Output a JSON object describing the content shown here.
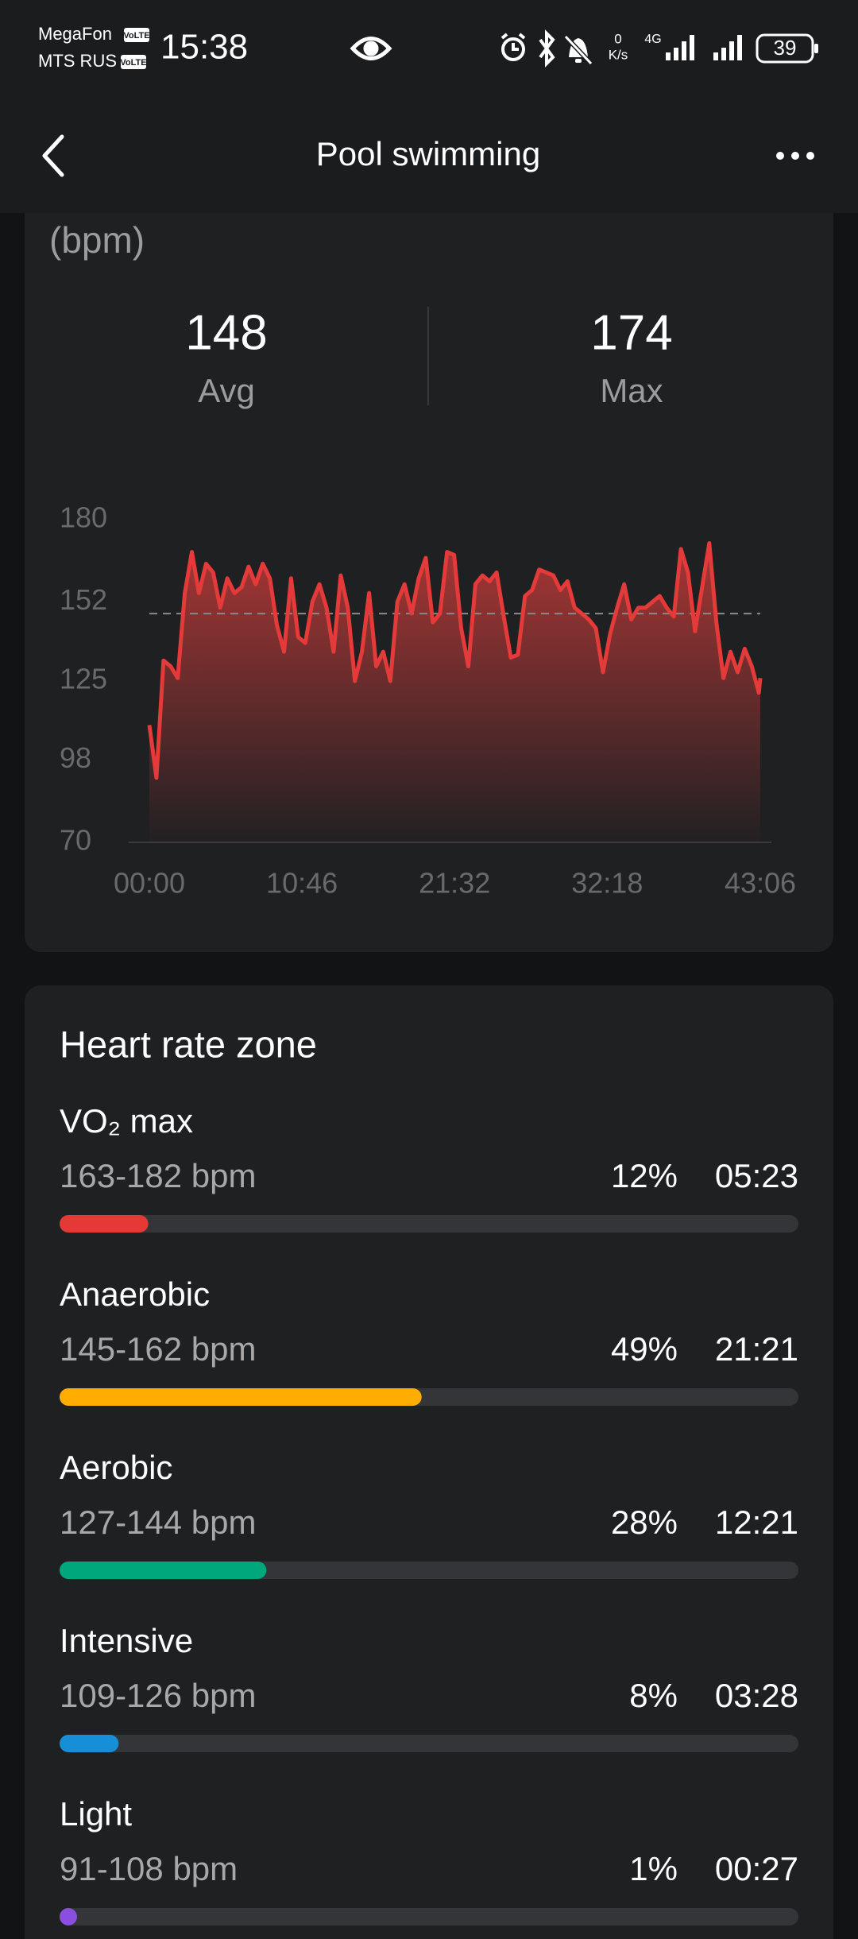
{
  "status_bar": {
    "carrier_1": "MegaFon",
    "carrier_2": "MTS RUS",
    "volte": "VoLTE",
    "time": "15:38",
    "speed": "0",
    "speed_unit": "K/s",
    "network": "4G",
    "battery": "39"
  },
  "header": {
    "title": "Pool swimming"
  },
  "summary": {
    "avg": 148,
    "avg_label": "Avg",
    "max": 174,
    "max_label": "Max"
  },
  "chart_data": {
    "type": "area",
    "title": "(bpm)",
    "color": "#e53a3a",
    "x": [
      0,
      30,
      60,
      90,
      120,
      150,
      180,
      210,
      240,
      270,
      300,
      330,
      360,
      390,
      420,
      450,
      480,
      510,
      540,
      570,
      600,
      630,
      660,
      690,
      720,
      750,
      780,
      810,
      840,
      870,
      900,
      930,
      960,
      990,
      1020,
      1050,
      1080,
      1110,
      1140,
      1170,
      1200,
      1230,
      1260,
      1290,
      1320,
      1350,
      1380,
      1410,
      1440,
      1470,
      1500,
      1530,
      1560,
      1590,
      1620,
      1650,
      1680,
      1710,
      1740,
      1770,
      1800,
      1830,
      1860,
      1890,
      1920,
      1950,
      1980,
      2010,
      2040,
      2070,
      2100,
      2130,
      2160,
      2190,
      2220,
      2250,
      2280,
      2310,
      2340,
      2370,
      2400,
      2430,
      2460,
      2490,
      2520,
      2550,
      2580,
      2586
    ],
    "values": [
      110,
      92,
      132,
      130,
      126,
      155,
      169,
      155,
      165,
      162,
      150,
      160,
      155,
      157,
      164,
      158,
      165,
      160,
      144,
      135,
      160,
      140,
      138,
      152,
      158,
      150,
      135,
      161,
      150,
      125,
      135,
      155,
      130,
      135,
      125,
      152,
      158,
      148,
      160,
      167,
      145,
      148,
      169,
      168,
      143,
      130,
      158,
      161,
      159,
      162,
      147,
      133,
      134,
      154,
      156,
      163,
      162,
      161,
      156,
      159,
      150,
      148,
      146,
      143,
      128,
      141,
      150,
      158,
      146,
      150,
      150,
      152,
      154,
      150,
      147,
      170,
      162,
      142,
      157,
      172,
      145,
      126,
      135,
      128,
      136,
      130,
      121,
      126
    ],
    "xlim": [
      0,
      2586
    ],
    "xticks": [
      {
        "value": 0,
        "label": "00:00"
      },
      {
        "value": 646,
        "label": "10:46"
      },
      {
        "value": 1292,
        "label": "21:32"
      },
      {
        "value": 1938,
        "label": "32:18"
      },
      {
        "value": 2586,
        "label": "43:06"
      }
    ],
    "ylim": [
      70,
      180
    ],
    "yticks": [
      70,
      98,
      125,
      152,
      180
    ]
  },
  "zones": {
    "title": "Heart rate zone",
    "items": [
      {
        "name": "VO₂ max",
        "range": "163-182 bpm",
        "time": "05:23",
        "color": "#e53935"
      },
      {
        "name": "Anaerobic",
        "range": "145-162 bpm",
        "time": "21:21",
        "color": "#ffae00"
      },
      {
        "name": "Aerobic",
        "range": "127-144 bpm",
        "time": "12:21",
        "color": "#00a67c"
      },
      {
        "name": "Intensive",
        "range": "109-126 bpm",
        "time": "03:28",
        "color": "#168fd8"
      },
      {
        "name": "Light",
        "range": "91-108 bpm",
        "time": "00:27",
        "color": "#8a4fe0"
      }
    ],
    "values": [
      12,
      49,
      28,
      8,
      1
    ],
    "value_labels": [
      "12%",
      "49%",
      "28%",
      "8%",
      "1%"
    ]
  }
}
